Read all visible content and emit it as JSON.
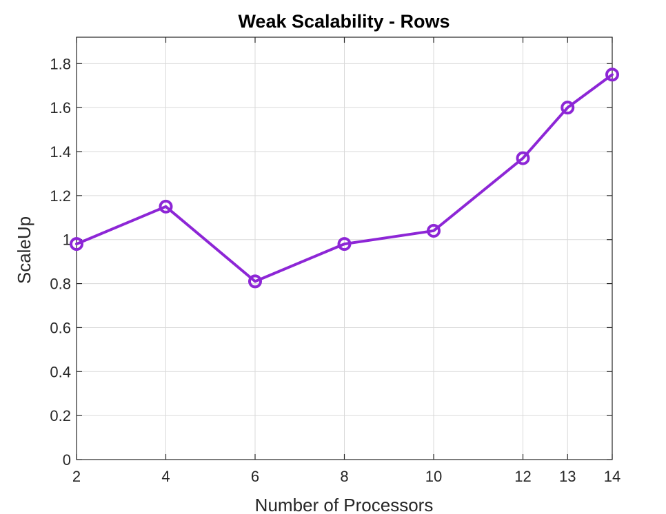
{
  "chart_data": {
    "type": "line",
    "title": "Weak Scalability - Rows",
    "xlabel": "Number of Processors",
    "ylabel": "ScaleUp",
    "x": [
      2,
      4,
      6,
      8,
      10,
      12,
      13,
      14
    ],
    "x_tick_labels": [
      "2",
      "4",
      "6",
      "8",
      "10",
      "12",
      "13",
      "14"
    ],
    "y_ticks": [
      0,
      0.2,
      0.4,
      0.6,
      0.8,
      1,
      1.2,
      1.4,
      1.6,
      1.8
    ],
    "y_tick_labels": [
      "0",
      "0.2",
      "0.4",
      "0.6",
      "0.8",
      "1",
      "1.2",
      "1.4",
      "1.6",
      "1.8"
    ],
    "xlim": [
      2,
      14
    ],
    "ylim": [
      0,
      1.8
    ],
    "grid": true,
    "series": [
      {
        "values": [
          0.98,
          1.15,
          0.81,
          0.98,
          1.04,
          1.37,
          1.6,
          1.75
        ],
        "color": "#8d26d6",
        "marker": "circle"
      }
    ]
  }
}
